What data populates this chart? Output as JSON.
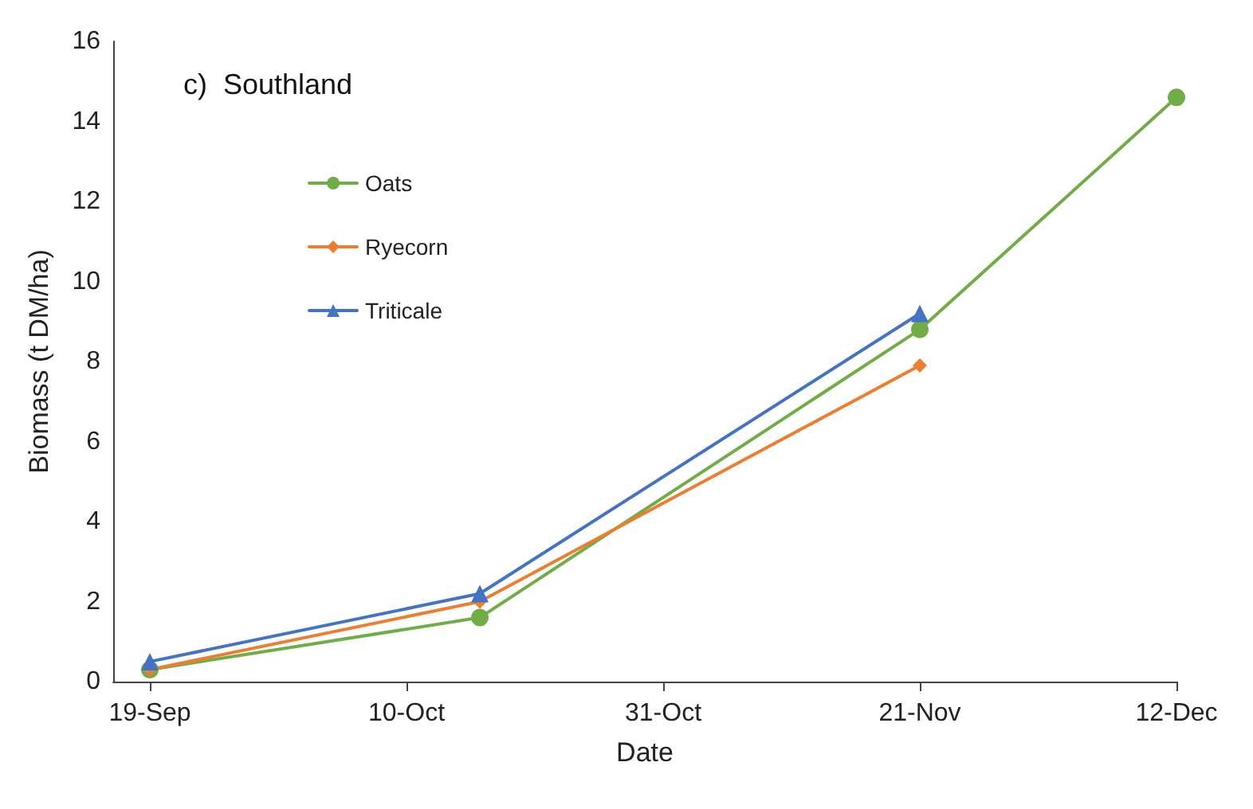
{
  "chart_data": {
    "type": "line",
    "xlabel": "Date",
    "ylabel": "Biomass (t DM/ha)",
    "annotations": [
      "c)  Southland"
    ],
    "xlim": [
      "--09-16",
      "--12-12"
    ],
    "xticks": [
      {
        "value": "--09-19",
        "label": "19-Sep"
      },
      {
        "value": "--10-10",
        "label": "10-Oct"
      },
      {
        "value": "--10-31",
        "label": "31-Oct"
      },
      {
        "value": "--11-21",
        "label": "21-Nov"
      },
      {
        "value": "--12-12",
        "label": "12-Dec"
      }
    ],
    "ylim": [
      0,
      16
    ],
    "yticks": [
      0,
      2,
      4,
      6,
      8,
      10,
      12,
      14,
      16
    ],
    "grid": false,
    "legend": "top left",
    "line_style": "solid",
    "series": [
      {
        "name": "Oats",
        "color": "#70ad47",
        "marker": "circle",
        "x": [
          "--09-19",
          "--10-16",
          "--11-21",
          "--12-12"
        ],
        "values": [
          0.3,
          1.6,
          8.8,
          14.6
        ]
      },
      {
        "name": "Ryecorn",
        "color": "#ed7d31",
        "marker": "diamond",
        "x": [
          "--09-19",
          "--10-16",
          "--11-21"
        ],
        "values": [
          0.3,
          2.0,
          7.9
        ]
      },
      {
        "name": "Triticale",
        "color": "#4472c4",
        "marker": "triangle",
        "x": [
          "--09-19",
          "--10-16",
          "--11-21"
        ],
        "values": [
          0.5,
          2.2,
          9.2
        ]
      }
    ]
  }
}
